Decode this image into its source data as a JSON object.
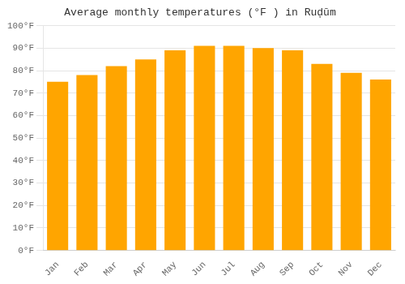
{
  "chart_data": {
    "type": "bar",
    "title": "Average monthly temperatures (°F ) in Ruḑūm",
    "categories": [
      "Jan",
      "Feb",
      "Mar",
      "Apr",
      "May",
      "Jun",
      "Jul",
      "Aug",
      "Sep",
      "Oct",
      "Nov",
      "Dec"
    ],
    "values": [
      75,
      78,
      82,
      85,
      89,
      91,
      91,
      90,
      89,
      83,
      79,
      76
    ],
    "color": "#FFA500",
    "ylim": [
      0,
      100
    ],
    "yticks": [
      {
        "value": 0,
        "label": "0°F"
      },
      {
        "value": 10,
        "label": "10°F"
      },
      {
        "value": 20,
        "label": "20°F"
      },
      {
        "value": 30,
        "label": "30°F"
      },
      {
        "value": 40,
        "label": "40°F"
      },
      {
        "value": 50,
        "label": "50°F"
      },
      {
        "value": 60,
        "label": "60°F"
      },
      {
        "value": 70,
        "label": "70°F"
      },
      {
        "value": 80,
        "label": "80°F"
      },
      {
        "value": 90,
        "label": "90°F"
      },
      {
        "value": 100,
        "label": "100°F"
      }
    ],
    "grid": true
  }
}
